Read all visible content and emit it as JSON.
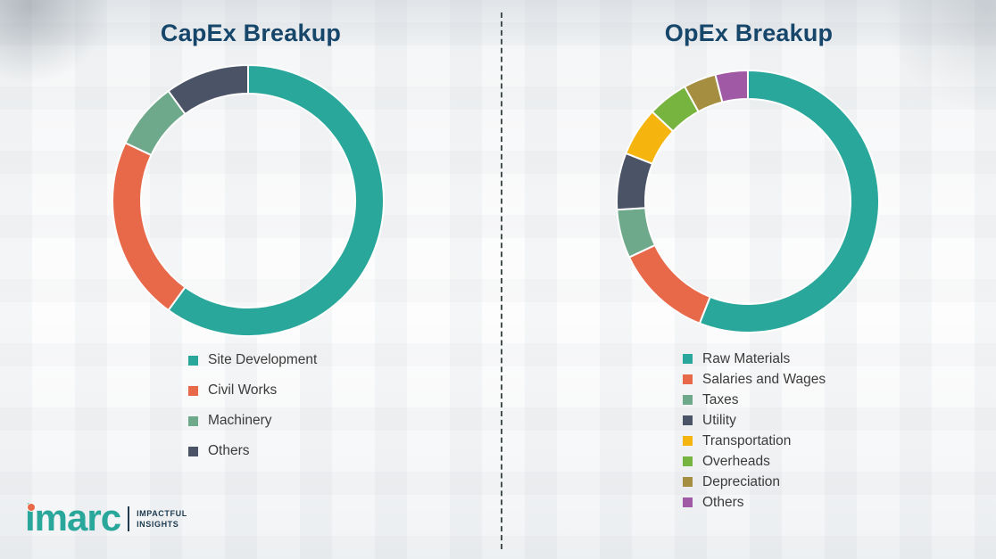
{
  "theme": {
    "title_color": "#17466b",
    "divider_color": "#44514f",
    "legend_text_color": "#3c3c3c",
    "background": "#fdfdfd"
  },
  "chart_data": [
    {
      "type": "pie",
      "subtype": "donut",
      "title": "CapEx Breakup",
      "legend_position": "bottom",
      "labels": [
        "Site Development",
        "Civil Works",
        "Machinery",
        "Others"
      ],
      "values": [
        60,
        22,
        8,
        10
      ],
      "colors": [
        "#2aa79b",
        "#e8694a",
        "#6fa98c",
        "#4b5366"
      ]
    },
    {
      "type": "pie",
      "subtype": "donut",
      "title": "OpEx Breakup",
      "legend_position": "bottom",
      "labels": [
        "Raw Materials",
        "Salaries and Wages",
        "Taxes",
        "Utility",
        "Transportation",
        "Overheads",
        "Depreciation",
        "Others"
      ],
      "values": [
        56,
        12,
        6,
        7,
        6,
        5,
        4,
        4
      ],
      "colors": [
        "#2aa79b",
        "#e8694a",
        "#6fa98c",
        "#4b5366",
        "#f6b40e",
        "#77b33f",
        "#a58e3f",
        "#a05aa5"
      ]
    }
  ],
  "logo": {
    "brand": "imarc",
    "tagline": [
      "IMPACTFUL",
      "INSIGHTS"
    ],
    "brand_color": "#2aa79b",
    "accent_color": "#e8694a"
  }
}
